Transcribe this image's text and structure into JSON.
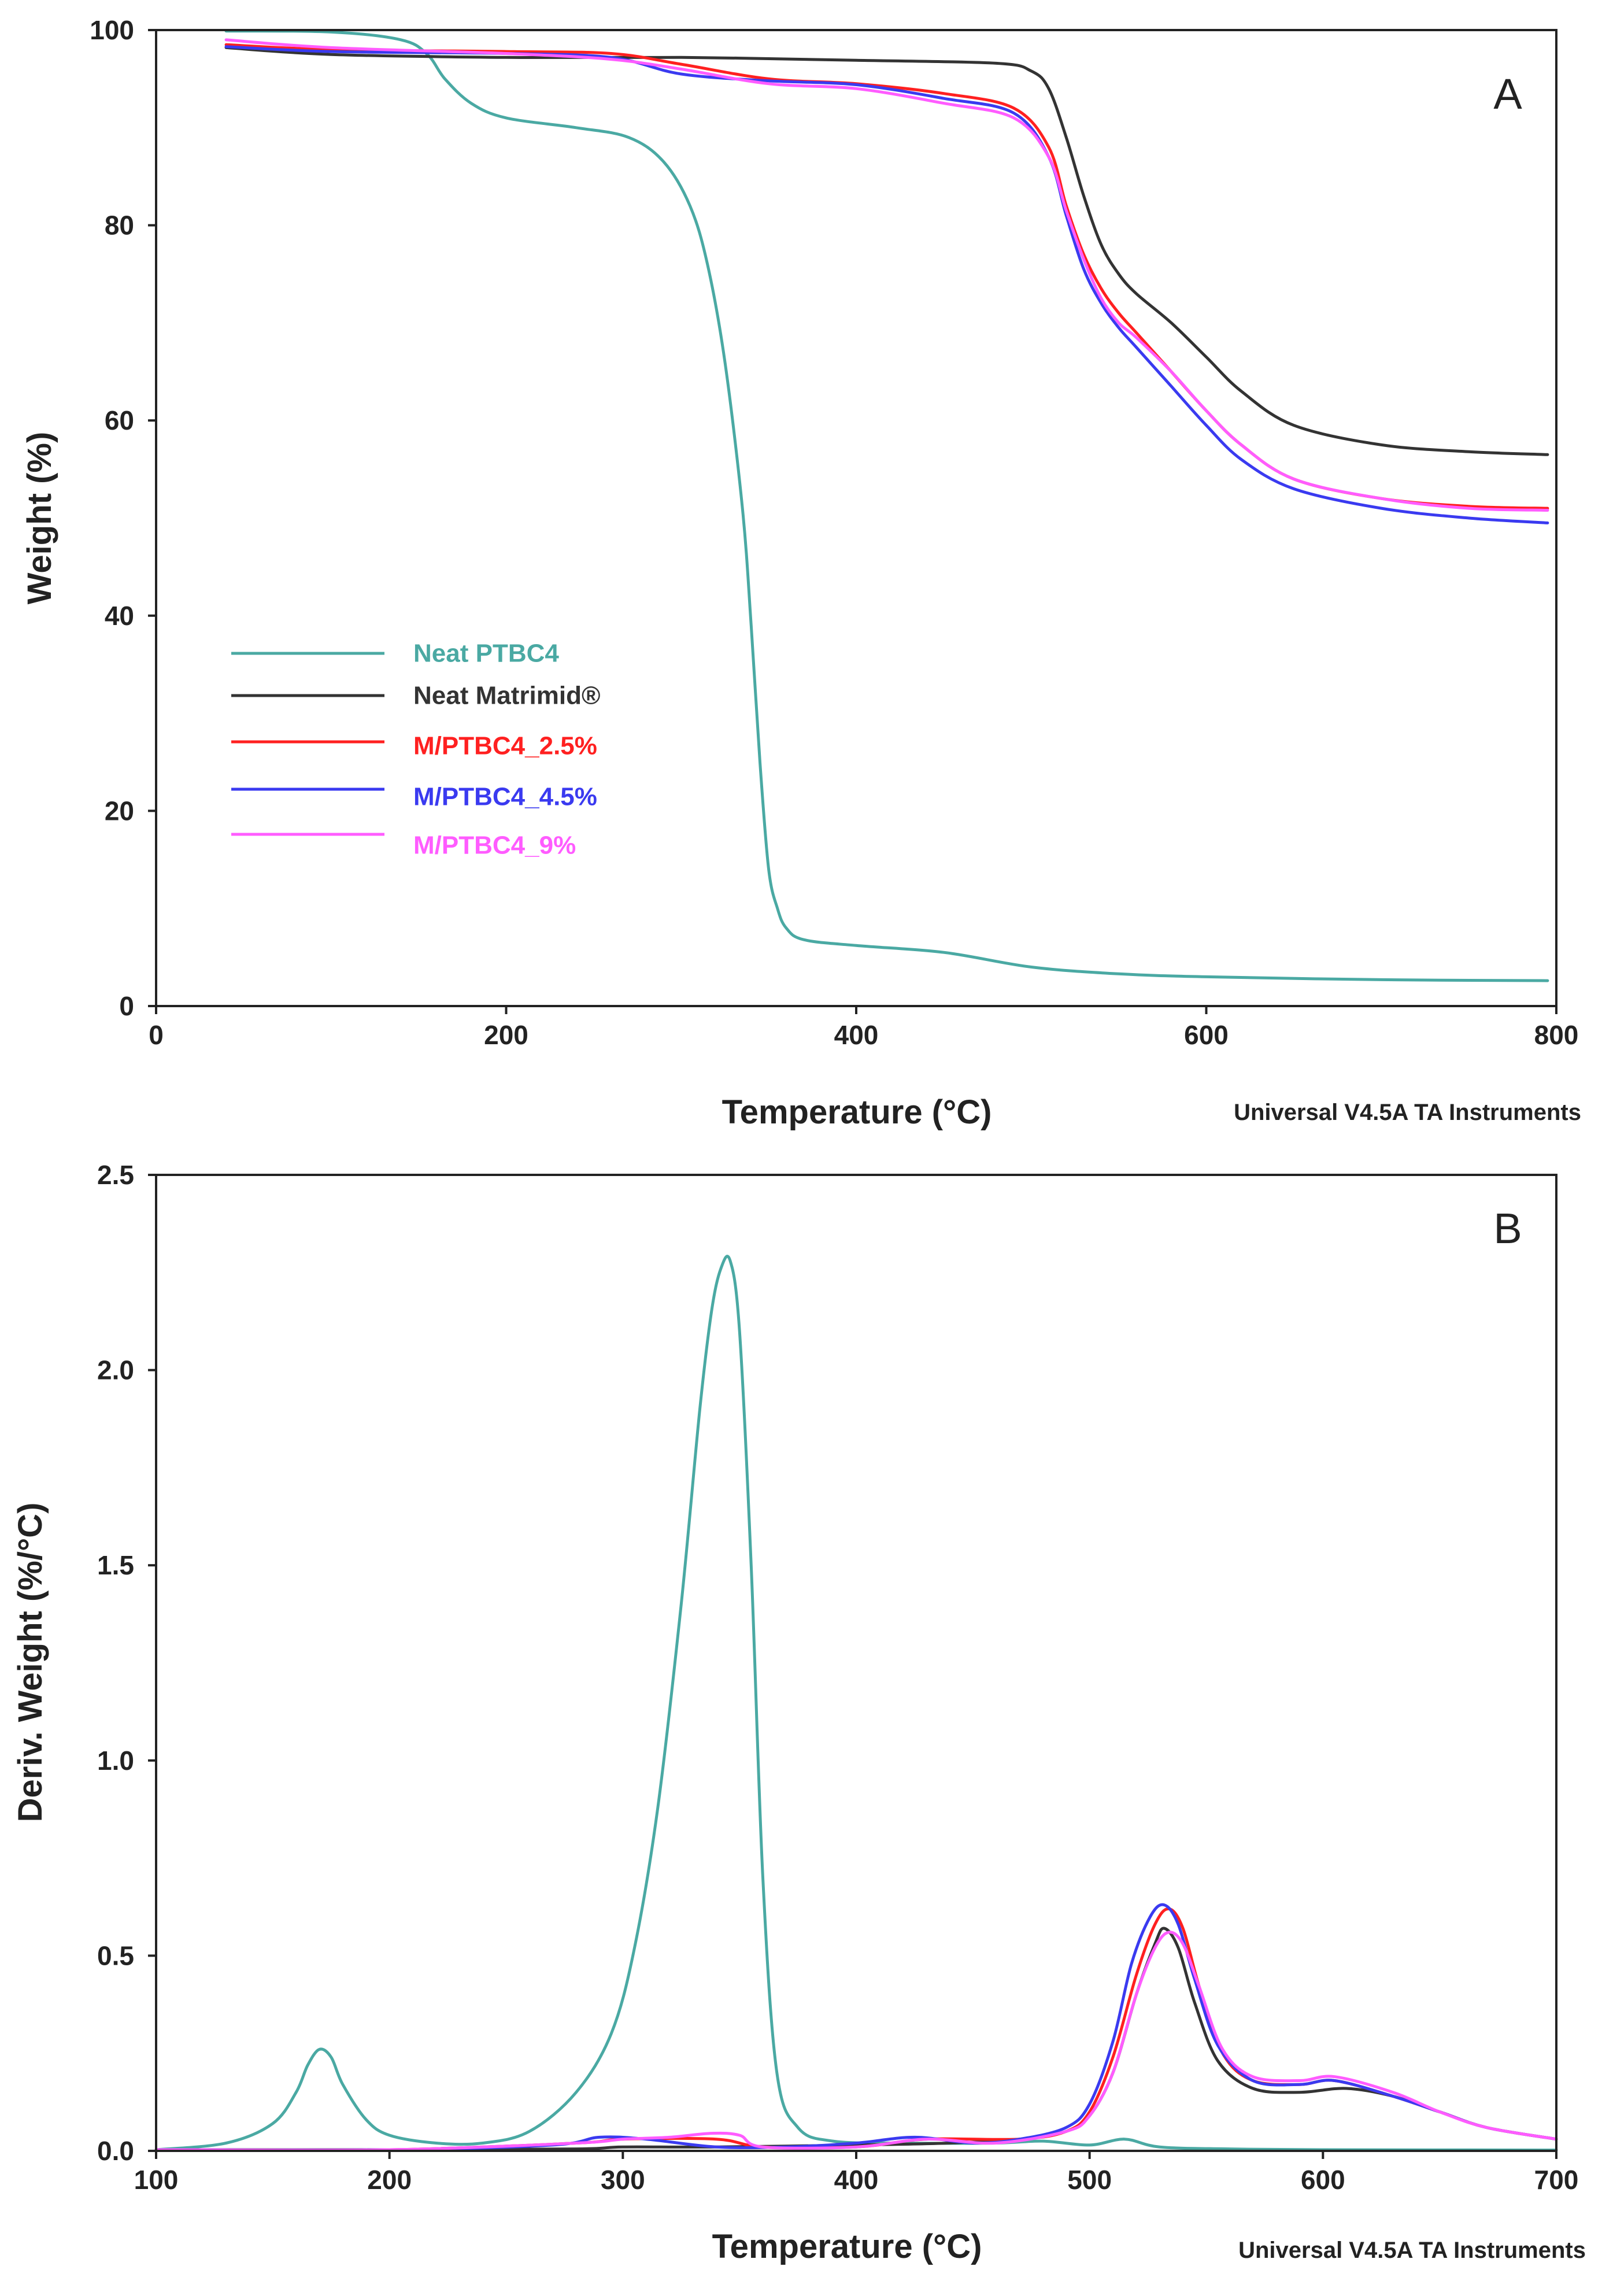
{
  "chart_data": [
    {
      "type": "line",
      "panel_label": "A",
      "title": "",
      "xlabel": "Temperature (°C)",
      "ylabel": "Weight (%)",
      "credit": "Universal V4.5A TA Instruments",
      "xlim": [
        0,
        800
      ],
      "ylim": [
        0,
        100
      ],
      "x_ticks": [
        "0",
        "200",
        "400",
        "600",
        "800"
      ],
      "y_ticks": [
        "0",
        "20",
        "40",
        "60",
        "80",
        "100"
      ],
      "legend": [
        {
          "label": "Neat PTBC4",
          "color": "#4aa9a3"
        },
        {
          "label": "Neat Matrimid®",
          "color": "#333333"
        },
        {
          "label": "M/PTBC4_2.5%",
          "color": "#ff2020"
        },
        {
          "label": "M/PTBC4_4.5%",
          "color": "#3a3af0"
        },
        {
          "label": "M/PTBC4_9%",
          "color": "#ff5cff"
        }
      ],
      "series": [
        {
          "name": "Neat PTBC4",
          "color": "#4aa9a3",
          "x": [
            40,
            100,
            140,
            155,
            165,
            180,
            200,
            240,
            270,
            290,
            305,
            315,
            325,
            335,
            340,
            345,
            350,
            355,
            360,
            370,
            400,
            450,
            500,
            550,
            600,
            700,
            795
          ],
          "y": [
            99.9,
            99.8,
            99.0,
            97.5,
            95.0,
            92.5,
            91.0,
            90.0,
            89.0,
            86.5,
            82.0,
            76.0,
            66.0,
            51.0,
            39.0,
            25.0,
            14.0,
            10.0,
            8.0,
            6.8,
            6.2,
            5.5,
            4.0,
            3.3,
            3.0,
            2.7,
            2.6
          ]
        },
        {
          "name": "Neat Matrimid®",
          "color": "#333333",
          "x": [
            40,
            100,
            200,
            300,
            400,
            480,
            500,
            510,
            520,
            530,
            540,
            550,
            560,
            580,
            600,
            620,
            650,
            700,
            750,
            795
          ],
          "y": [
            98.2,
            97.5,
            97.2,
            97.2,
            96.9,
            96.6,
            95.8,
            94.0,
            89.0,
            83.0,
            78.0,
            75.0,
            73.0,
            70.0,
            66.5,
            63.0,
            59.5,
            57.5,
            56.8,
            56.5
          ]
        },
        {
          "name": "M/PTBC4_2.5%",
          "color": "#ff2020",
          "x": [
            40,
            100,
            200,
            260,
            300,
            350,
            400,
            450,
            490,
            510,
            520,
            530,
            540,
            550,
            560,
            580,
            600,
            620,
            650,
            700,
            750,
            795
          ],
          "y": [
            98.5,
            98.0,
            97.8,
            97.6,
            96.5,
            95.0,
            94.5,
            93.5,
            92.0,
            88.0,
            82.0,
            77.0,
            73.5,
            71.0,
            69.0,
            65.0,
            61.0,
            57.5,
            54.0,
            52.0,
            51.2,
            51.0
          ]
        },
        {
          "name": "M/PTBC4_4.5%",
          "color": "#3a3af0",
          "x": [
            40,
            100,
            200,
            260,
            300,
            350,
            400,
            450,
            490,
            510,
            520,
            530,
            540,
            550,
            560,
            580,
            600,
            620,
            650,
            700,
            750,
            795
          ],
          "y": [
            98.3,
            97.8,
            97.6,
            97.2,
            95.5,
            94.8,
            94.4,
            93.0,
            91.5,
            87.0,
            81.0,
            75.5,
            72.0,
            69.5,
            67.5,
            63.5,
            59.5,
            56.0,
            53.0,
            51.0,
            50.0,
            49.5
          ]
        },
        {
          "name": "M/PTBC4_9%",
          "color": "#ff5cff",
          "x": [
            40,
            100,
            200,
            260,
            300,
            350,
            400,
            450,
            490,
            510,
            520,
            530,
            540,
            550,
            560,
            580,
            600,
            620,
            650,
            700,
            750,
            795
          ],
          "y": [
            99.0,
            98.2,
            97.6,
            97.0,
            96.0,
            94.5,
            94.0,
            92.5,
            91.0,
            87.0,
            81.5,
            76.5,
            72.5,
            70.0,
            68.5,
            65.0,
            61.0,
            57.5,
            54.0,
            52.0,
            51.0,
            50.8
          ]
        }
      ]
    },
    {
      "type": "line",
      "panel_label": "B",
      "title": "",
      "xlabel": "Temperature (°C)",
      "ylabel": "Deriv. Weight (%/°C)",
      "credit": "Universal V4.5A TA Instruments",
      "xlim": [
        100,
        700
      ],
      "ylim": [
        0,
        2.5
      ],
      "x_ticks": [
        "100",
        "200",
        "300",
        "400",
        "500",
        "600",
        "700"
      ],
      "y_ticks": [
        "0.0",
        "0.5",
        "1.0",
        "1.5",
        "2.0",
        "2.5"
      ],
      "series": [
        {
          "name": "Neat PTBC4",
          "color": "#4aa9a3",
          "x": [
            100,
            130,
            150,
            160,
            165,
            170,
            175,
            180,
            190,
            200,
            220,
            240,
            260,
            280,
            295,
            305,
            315,
            325,
            333,
            338,
            342,
            346,
            350,
            355,
            360,
            366,
            375,
            390,
            420,
            460,
            480,
            500,
            515,
            530,
            560,
            600,
            700
          ],
          "y": [
            0.003,
            0.02,
            0.07,
            0.15,
            0.22,
            0.26,
            0.24,
            0.17,
            0.08,
            0.04,
            0.02,
            0.02,
            0.05,
            0.15,
            0.3,
            0.52,
            0.88,
            1.4,
            1.9,
            2.15,
            2.26,
            2.28,
            2.1,
            1.5,
            0.7,
            0.2,
            0.06,
            0.025,
            0.02,
            0.02,
            0.025,
            0.015,
            0.03,
            0.01,
            0.005,
            0.003,
            0.002
          ]
        },
        {
          "name": "Neat Matrimid®",
          "color": "#333333",
          "x": [
            100,
            200,
            280,
            300,
            340,
            400,
            440,
            470,
            490,
            500,
            510,
            520,
            528,
            532,
            538,
            545,
            555,
            570,
            590,
            610,
            630,
            650,
            670,
            700
          ],
          "y": [
            0.003,
            0.003,
            0.005,
            0.01,
            0.01,
            0.015,
            0.02,
            0.03,
            0.05,
            0.09,
            0.2,
            0.4,
            0.53,
            0.57,
            0.52,
            0.38,
            0.23,
            0.16,
            0.15,
            0.16,
            0.14,
            0.1,
            0.06,
            0.03
          ]
        },
        {
          "name": "M/PTBC4_2.5%",
          "color": "#ff2020",
          "x": [
            100,
            200,
            280,
            300,
            340,
            360,
            400,
            430,
            470,
            490,
            500,
            510,
            520,
            528,
            534,
            540,
            547,
            557,
            570,
            590,
            605,
            630,
            650,
            670,
            700
          ],
          "y": [
            0.003,
            0.003,
            0.02,
            0.03,
            0.03,
            0.01,
            0.01,
            0.03,
            0.03,
            0.05,
            0.1,
            0.24,
            0.45,
            0.58,
            0.62,
            0.57,
            0.42,
            0.25,
            0.18,
            0.17,
            0.18,
            0.14,
            0.1,
            0.06,
            0.03
          ]
        },
        {
          "name": "M/PTBC4_4.5%",
          "color": "#3a3af0",
          "x": [
            100,
            200,
            270,
            290,
            310,
            340,
            370,
            400,
            425,
            450,
            470,
            490,
            500,
            510,
            518,
            526,
            532,
            538,
            545,
            555,
            570,
            590,
            605,
            630,
            650,
            670,
            700
          ],
          "y": [
            0.003,
            0.003,
            0.015,
            0.035,
            0.03,
            0.01,
            0.01,
            0.02,
            0.035,
            0.02,
            0.03,
            0.06,
            0.12,
            0.28,
            0.48,
            0.6,
            0.63,
            0.58,
            0.44,
            0.27,
            0.18,
            0.17,
            0.18,
            0.14,
            0.1,
            0.06,
            0.03
          ]
        },
        {
          "name": "M/PTBC4_9%",
          "color": "#ff5cff",
          "x": [
            100,
            200,
            280,
            300,
            320,
            338,
            350,
            360,
            400,
            430,
            460,
            490,
            500,
            510,
            520,
            528,
            534,
            540,
            547,
            557,
            570,
            590,
            605,
            630,
            650,
            670,
            700
          ],
          "y": [
            0.003,
            0.003,
            0.02,
            0.03,
            0.035,
            0.045,
            0.04,
            0.01,
            0.01,
            0.03,
            0.02,
            0.05,
            0.09,
            0.2,
            0.4,
            0.52,
            0.56,
            0.53,
            0.42,
            0.26,
            0.19,
            0.18,
            0.19,
            0.15,
            0.1,
            0.06,
            0.03
          ]
        }
      ]
    }
  ]
}
